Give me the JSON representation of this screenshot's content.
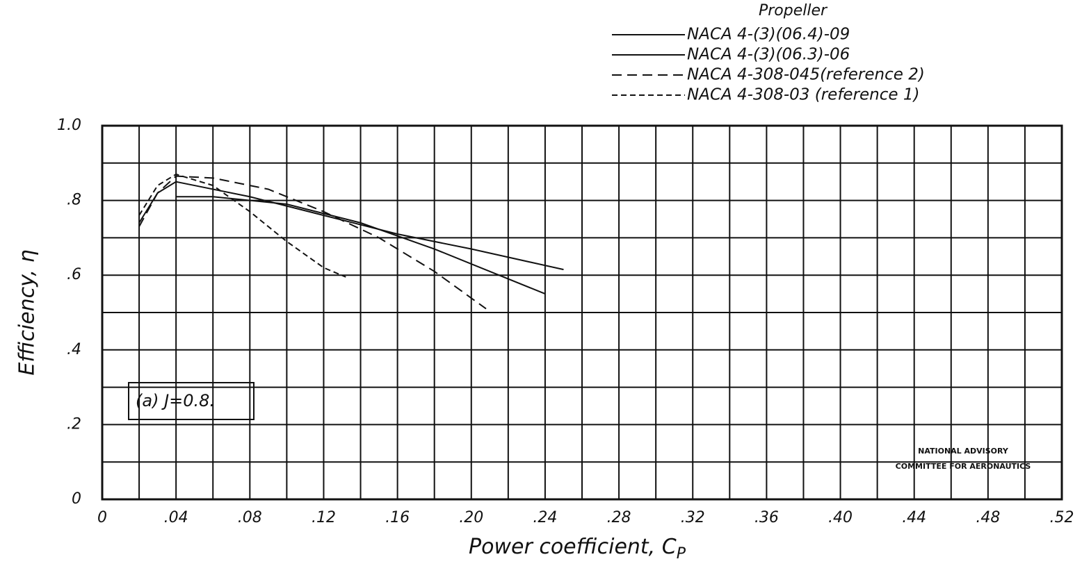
{
  "chart_data": {
    "type": "line",
    "x_label": "Power coefficient, C",
    "x_label_sub": "P",
    "y_label": "Efficiency, η",
    "legend_title": "Propeller",
    "annotation": "(a) J=0.8.",
    "credit": [
      "NATIONAL ADVISORY",
      "COMMITTEE FOR AERONAUTICS"
    ],
    "xlim": [
      0,
      0.52
    ],
    "ylim": [
      0,
      1.0
    ],
    "xticks": [
      0,
      {
        "value": 0.04,
        "label": ".04"
      },
      {
        "value": 0.08,
        "label": ".08"
      },
      {
        "value": 0.12,
        "label": ".12"
      },
      {
        "value": 0.16,
        "label": ".16"
      },
      {
        "value": 0.2,
        "label": ".20"
      },
      {
        "value": 0.24,
        "label": ".24"
      },
      {
        "value": 0.28,
        "label": ".28"
      },
      {
        "value": 0.32,
        "label": ".32"
      },
      {
        "value": 0.36,
        "label": ".36"
      },
      {
        "value": 0.4,
        "label": ".40"
      },
      {
        "value": 0.44,
        "label": ".44"
      },
      {
        "value": 0.48,
        "label": ".48"
      },
      {
        "value": 0.52,
        "label": ".52"
      }
    ],
    "yticks": [
      0,
      {
        "value": 0.2,
        "label": ".2"
      },
      {
        "value": 0.4,
        "label": ".4"
      },
      {
        "value": 0.6,
        "label": ".6"
      },
      {
        "value": 0.8,
        "label": ".8"
      },
      {
        "value": 1.0,
        "label": "1.0"
      }
    ],
    "xminor": [
      0.02,
      0.06,
      0.1,
      0.14,
      0.18,
      0.22,
      0.26,
      0.3,
      0.34,
      0.38,
      0.42,
      0.46,
      0.5
    ],
    "yminor": [
      0.1,
      0.3,
      0.5,
      0.7,
      0.9
    ],
    "grid": true,
    "legend": "top-right",
    "series": [
      {
        "name": "NACA 4-(3)(06.4)-09",
        "color": "#111111",
        "dash": "none",
        "x": [
          0.02,
          0.03,
          0.04,
          0.05,
          0.08,
          0.12,
          0.16,
          0.2,
          0.25
        ],
        "values": [
          0.74,
          0.82,
          0.85,
          0.84,
          0.81,
          0.76,
          0.71,
          0.67,
          0.615
        ]
      },
      {
        "name": "NACA 4-(3)(06.3)-06",
        "color": "#111111",
        "dash": "none",
        "x": [
          0.04,
          0.06,
          0.1,
          0.14,
          0.18,
          0.21,
          0.24
        ],
        "values": [
          0.81,
          0.81,
          0.79,
          0.74,
          0.67,
          0.61,
          0.55
        ]
      },
      {
        "name": "NACA 4-308-045(reference 2)",
        "color": "#111111",
        "dash": "14 8",
        "x": [
          0.02,
          0.03,
          0.04,
          0.06,
          0.09,
          0.12,
          0.15,
          0.18,
          0.208
        ],
        "values": [
          0.73,
          0.82,
          0.865,
          0.86,
          0.83,
          0.77,
          0.7,
          0.61,
          0.51
        ]
      },
      {
        "name": "NACA 4-308-03 (reference 1)",
        "color": "#111111",
        "dash": "8 5",
        "x": [
          0.02,
          0.03,
          0.04,
          0.06,
          0.08,
          0.1,
          0.12,
          0.132
        ],
        "values": [
          0.76,
          0.84,
          0.87,
          0.84,
          0.77,
          0.69,
          0.62,
          0.595
        ]
      }
    ]
  }
}
